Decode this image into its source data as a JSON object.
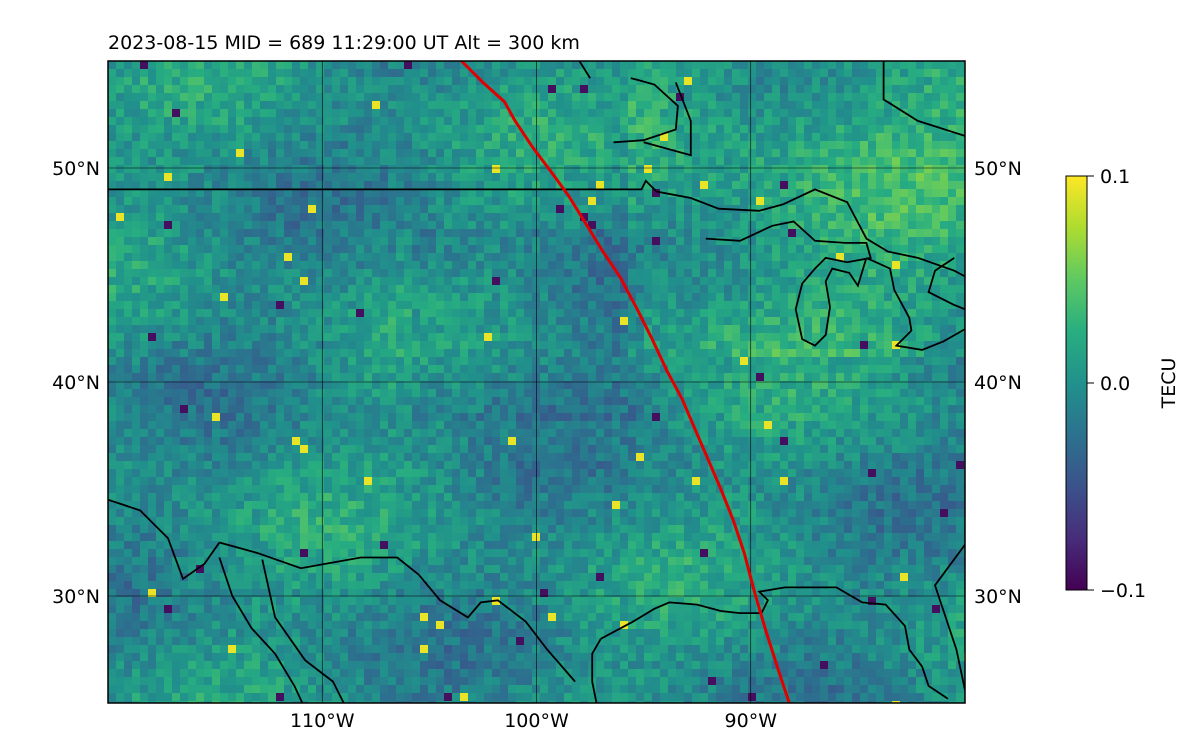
{
  "title": "2023-08-15  MID = 689    11:29:00  UT  Alt = 300 km",
  "map": {
    "lon_range": [
      -120,
      -80
    ],
    "lat_range": [
      25,
      55
    ],
    "lon_ticks": [
      {
        "value": -110,
        "label": "110°W"
      },
      {
        "value": -100,
        "label": "100°W"
      },
      {
        "value": -90,
        "label": "90°W"
      }
    ],
    "lat_ticks": [
      {
        "value": 30,
        "label": "30°N"
      },
      {
        "value": 40,
        "label": "40°N"
      },
      {
        "value": 50,
        "label": "50°N"
      }
    ],
    "gridlines": true,
    "colormap": "viridis"
  },
  "colorbar": {
    "label": "TECU",
    "min": -0.1,
    "max": 0.1,
    "ticks": [
      {
        "value": 0.1,
        "label": "0.1"
      },
      {
        "value": 0.0,
        "label": "0.0"
      },
      {
        "value": -0.1,
        "label": "−0.1"
      }
    ]
  },
  "track": {
    "color": "#e00000",
    "points": [
      [
        -103.5,
        55
      ],
      [
        -102.5,
        54
      ],
      [
        -101.5,
        53.1
      ],
      [
        -101,
        52.2
      ],
      [
        -100.2,
        51
      ],
      [
        -99.3,
        49.8
      ],
      [
        -98.5,
        48.7
      ],
      [
        -97.7,
        47.4
      ],
      [
        -96.9,
        46.1
      ],
      [
        -96.1,
        44.9
      ],
      [
        -95.3,
        43.4
      ],
      [
        -94.6,
        42
      ],
      [
        -93.9,
        40.5
      ],
      [
        -93.2,
        39.2
      ],
      [
        -92.6,
        37.8
      ],
      [
        -92,
        36.4
      ],
      [
        -91.4,
        35
      ],
      [
        -90.8,
        33.5
      ],
      [
        -90.3,
        32
      ],
      [
        -89.8,
        30.1
      ],
      [
        -89.3,
        28.4
      ],
      [
        -88.7,
        26.5
      ],
      [
        -88.2,
        25
      ]
    ]
  },
  "coastlines": [
    [
      [
        -120,
        49
      ],
      [
        -95.1,
        49
      ],
      [
        -94.9,
        49.4
      ],
      [
        -94.4,
        48.9
      ],
      [
        -92.8,
        48.6
      ],
      [
        -91.5,
        48.1
      ],
      [
        -89.6,
        48
      ],
      [
        -88.5,
        48.3
      ],
      [
        -87,
        49
      ],
      [
        -85.5,
        48.4
      ],
      [
        -84.6,
        46.7
      ],
      [
        -83.6,
        46.1
      ],
      [
        -82.2,
        45.8
      ],
      [
        -80.5,
        45.2
      ],
      [
        -79,
        44.4
      ]
    ],
    [
      [
        -92.1,
        46.7
      ],
      [
        -90.5,
        46.6
      ],
      [
        -89,
        47.3
      ],
      [
        -88,
        47.5
      ],
      [
        -87,
        46.6
      ],
      [
        -85.6,
        46.5
      ],
      [
        -84.6,
        46.5
      ],
      [
        -84.4,
        45.8
      ],
      [
        -85.5,
        45.6
      ],
      [
        -86.5,
        45.8
      ],
      [
        -87,
        45.3
      ],
      [
        -87.6,
        44.6
      ],
      [
        -87.9,
        43.4
      ],
      [
        -87.6,
        42
      ],
      [
        -87,
        41.7
      ],
      [
        -86.5,
        42.2
      ],
      [
        -86.3,
        43.5
      ],
      [
        -86.5,
        44.7
      ],
      [
        -86.2,
        45.3
      ],
      [
        -85.4,
        45.1
      ],
      [
        -85,
        44.5
      ],
      [
        -84.6,
        45.8
      ]
    ],
    [
      [
        -84.6,
        45.8
      ],
      [
        -83.5,
        45.3
      ],
      [
        -83.3,
        44.3
      ],
      [
        -82.6,
        43
      ],
      [
        -82.5,
        42.4
      ],
      [
        -83.2,
        41.7
      ],
      [
        -82,
        41.5
      ],
      [
        -81,
        41.9
      ],
      [
        -79.6,
        42.7
      ],
      [
        -79.5,
        43.2
      ],
      [
        -80.5,
        43.6
      ],
      [
        -81.7,
        44.2
      ],
      [
        -81.4,
        45.2
      ],
      [
        -80.5,
        45.8
      ]
    ],
    [
      [
        -97,
        28
      ],
      [
        -97.4,
        27.3
      ],
      [
        -97.4,
        26
      ],
      [
        -97.2,
        25
      ],
      [
        -97.6,
        24
      ]
    ],
    [
      [
        -97,
        28
      ],
      [
        -95.5,
        28.8
      ],
      [
        -94.5,
        29.4
      ],
      [
        -93.8,
        29.7
      ],
      [
        -92.5,
        29.6
      ],
      [
        -91.4,
        29.3
      ],
      [
        -90.5,
        29.2
      ],
      [
        -89.5,
        29.2
      ],
      [
        -89.2,
        29.8
      ],
      [
        -89.6,
        30.2
      ],
      [
        -88.4,
        30.4
      ],
      [
        -87.2,
        30.4
      ],
      [
        -86,
        30.4
      ],
      [
        -84.8,
        29.7
      ],
      [
        -83.7,
        29.6
      ],
      [
        -82.8,
        28.6
      ],
      [
        -82.6,
        27.5
      ],
      [
        -82,
        26.7
      ],
      [
        -81.7,
        25.8
      ],
      [
        -80.8,
        25.2
      ]
    ],
    [
      [
        -80,
        25.6
      ],
      [
        -80.4,
        27.5
      ],
      [
        -81.4,
        30.5
      ],
      [
        -80,
        32.4
      ]
    ],
    [
      [
        -98.2,
        26
      ],
      [
        -99.5,
        27.5
      ],
      [
        -100.5,
        28.8
      ],
      [
        -101.8,
        29.8
      ],
      [
        -102.6,
        29.7
      ],
      [
        -103.2,
        29
      ],
      [
        -104.5,
        29.8
      ],
      [
        -105.5,
        31
      ],
      [
        -106.5,
        31.8
      ],
      [
        -108.2,
        31.8
      ],
      [
        -111,
        31.3
      ],
      [
        -113,
        32
      ],
      [
        -114.8,
        32.5
      ]
    ],
    [
      [
        -114.8,
        32.5
      ],
      [
        -115.5,
        31.5
      ],
      [
        -116.5,
        30.8
      ],
      [
        -117.2,
        32.7
      ],
      [
        -118.5,
        34
      ],
      [
        -120,
        34.5
      ]
    ],
    [
      [
        -114.8,
        31.8
      ],
      [
        -114.2,
        30
      ],
      [
        -113.3,
        28.5
      ],
      [
        -112.2,
        27.3
      ],
      [
        -111.3,
        25.8
      ],
      [
        -110.7,
        24.5
      ]
    ],
    [
      [
        -112.8,
        31.7
      ],
      [
        -112.2,
        29
      ],
      [
        -111.5,
        28
      ],
      [
        -110.8,
        27
      ],
      [
        -109.5,
        26
      ],
      [
        -109,
        25
      ]
    ],
    [
      [
        -98,
        55
      ],
      [
        -97.5,
        54.2
      ]
    ],
    [
      [
        -95.6,
        54.2
      ],
      [
        -94.5,
        53.9
      ],
      [
        -93.4,
        52.9
      ],
      [
        -93.5,
        51.8
      ],
      [
        -95,
        51.3
      ],
      [
        -96.4,
        51.2
      ]
    ],
    [
      [
        -83.8,
        55
      ],
      [
        -83.8,
        53.2
      ],
      [
        -82.2,
        52.2
      ],
      [
        -80,
        51.5
      ]
    ],
    [
      [
        -93.5,
        54
      ],
      [
        -92.8,
        52.2
      ],
      [
        -92.8,
        50.6
      ],
      [
        -95,
        51.2
      ]
    ]
  ]
}
